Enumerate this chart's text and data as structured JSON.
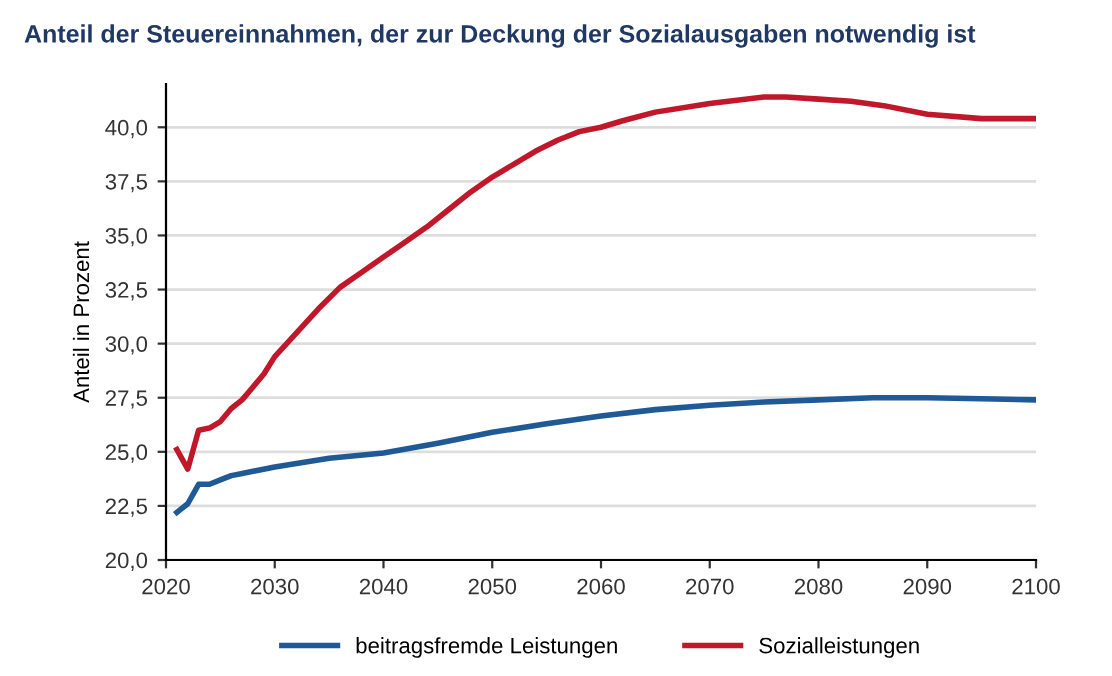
{
  "chart_data": {
    "type": "line",
    "title": "Anteil der Steuereinnahmen, der zur Deckung der Sozialausgaben notwendig ist",
    "ylabel": "Anteil in Prozent",
    "xlim": [
      2020,
      2100
    ],
    "xticks": [
      2020,
      2030,
      2040,
      2050,
      2060,
      2070,
      2080,
      2090,
      2100
    ],
    "ylim": [
      20,
      42
    ],
    "yticks": [
      {
        "value": 20,
        "label": "20,0"
      },
      {
        "value": 22.5,
        "label": "22,5"
      },
      {
        "value": 25,
        "label": "25,0"
      },
      {
        "value": 27.5,
        "label": "27,5"
      },
      {
        "value": 30,
        "label": "30,0"
      },
      {
        "value": 32.5,
        "label": "32,5"
      },
      {
        "value": 35,
        "label": "35,0"
      },
      {
        "value": 37.5,
        "label": "37,5"
      },
      {
        "value": 40,
        "label": "40,0"
      }
    ],
    "grid": "y",
    "legend": "bottom",
    "marker": "none",
    "line_style": "solid",
    "series": [
      {
        "name": "beitragsfremde Leistungen",
        "color": "#1f5a96",
        "x": [
          2021,
          2022,
          2023,
          2024,
          2025,
          2026,
          2027,
          2028,
          2030,
          2035,
          2040,
          2045,
          2050,
          2055,
          2060,
          2065,
          2070,
          2075,
          2080,
          2085,
          2090,
          2095,
          2100
        ],
        "values": [
          22.2,
          22.6,
          23.5,
          23.5,
          23.7,
          23.9,
          24.0,
          24.1,
          24.3,
          24.7,
          24.95,
          25.4,
          25.9,
          26.3,
          26.65,
          26.95,
          27.15,
          27.3,
          27.4,
          27.5,
          27.5,
          27.45,
          27.4
        ]
      },
      {
        "name": "Sozialleistungen",
        "color": "#c0182a",
        "x": [
          2021,
          2022,
          2023,
          2024,
          2025,
          2026,
          2027,
          2028,
          2029,
          2030,
          2032,
          2034,
          2036,
          2038,
          2040,
          2042,
          2044,
          2046,
          2048,
          2050,
          2052,
          2054,
          2056,
          2058,
          2060,
          2062,
          2065,
          2070,
          2075,
          2077,
          2080,
          2083,
          2086,
          2090,
          2095,
          2100
        ],
        "values": [
          25.1,
          24.2,
          26.0,
          26.1,
          26.4,
          27.0,
          27.4,
          28.0,
          28.6,
          29.4,
          30.5,
          31.6,
          32.6,
          33.3,
          34.0,
          34.7,
          35.4,
          36.2,
          37.0,
          37.7,
          38.3,
          38.9,
          39.4,
          39.8,
          40.0,
          40.3,
          40.7,
          41.1,
          41.4,
          41.4,
          41.3,
          41.2,
          41.0,
          40.6,
          40.4,
          40.4
        ]
      }
    ]
  }
}
